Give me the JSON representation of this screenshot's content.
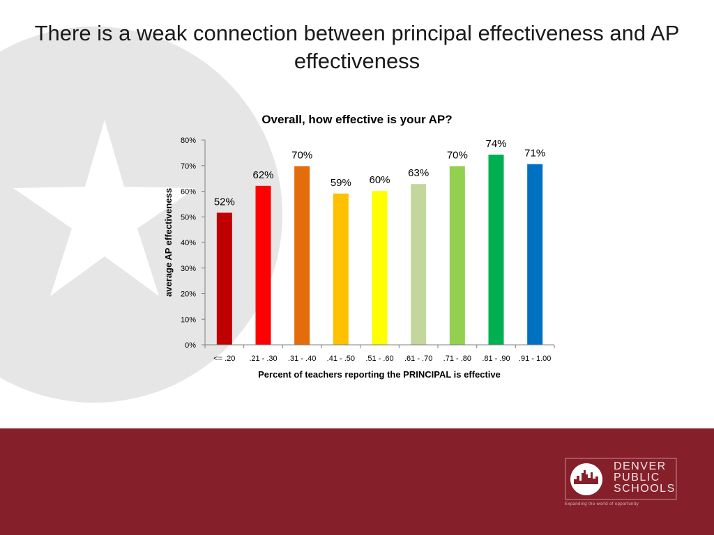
{
  "slide": {
    "title": "There is a weak connection between principal effectiveness and AP effectiveness"
  },
  "colors": {
    "footer": "#85202a",
    "star_background": "#e6e6e6"
  },
  "logo": {
    "line1": "DENVER",
    "line2": "PUBLIC",
    "line3": "SCHOOLS",
    "tagline": "Expanding the world of opportunity"
  },
  "chart_data": {
    "type": "bar",
    "title": "Overall, how effective is your AP?",
    "xlabel": "Percent of teachers reporting the PRINCIPAL is effective",
    "ylabel": "average AP effectiveness",
    "ylim": [
      0,
      0.8
    ],
    "yticks": [
      0,
      0.1,
      0.2,
      0.3,
      0.4,
      0.5,
      0.6,
      0.7,
      0.8
    ],
    "ytick_labels": [
      "0%",
      "10%",
      "20%",
      "30%",
      "40%",
      "50%",
      "60%",
      "70%",
      "80%"
    ],
    "categories": [
      "<= .20",
      ".21 - .30",
      ".31 - .40",
      ".41 - .50",
      ".51 - .60",
      ".61 - .70",
      ".71 - .80",
      ".81 - .90",
      ".91 - 1.00"
    ],
    "values": [
      0.516,
      0.621,
      0.698,
      0.591,
      0.601,
      0.628,
      0.698,
      0.743,
      0.706
    ],
    "data_labels": [
      "52%",
      "62%",
      "70%",
      "59%",
      "60%",
      "63%",
      "70%",
      "74%",
      "71%"
    ],
    "bar_colors": [
      "#c00000",
      "#ff0000",
      "#e46c0a",
      "#ffc000",
      "#ffff00",
      "#c3d69b",
      "#92d050",
      "#00b050",
      "#0070c0"
    ],
    "grid": false,
    "legend": "none"
  }
}
